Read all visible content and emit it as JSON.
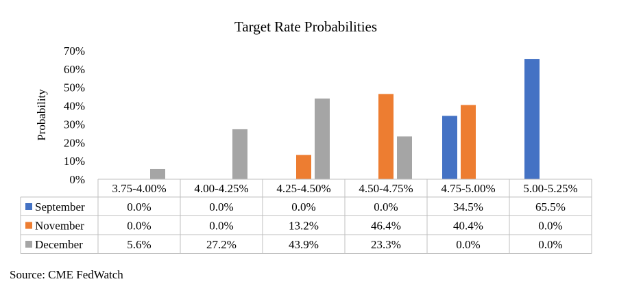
{
  "chart_data": {
    "type": "bar",
    "title": "Target Rate Probabilities",
    "ylabel": "Probability",
    "ylim": [
      0,
      70
    ],
    "yticks": [
      "0%",
      "10%",
      "20%",
      "30%",
      "40%",
      "50%",
      "60%",
      "70%"
    ],
    "categories": [
      "3.75-4.00%",
      "4.00-4.25%",
      "4.25-4.50%",
      "4.50-4.75%",
      "4.75-5.00%",
      "5.00-5.25%"
    ],
    "series": [
      {
        "name": "September",
        "color": "#4472C4",
        "values": [
          0.0,
          0.0,
          0.0,
          0.0,
          34.5,
          65.5
        ],
        "labels": [
          "0.0%",
          "0.0%",
          "0.0%",
          "0.0%",
          "34.5%",
          "65.5%"
        ]
      },
      {
        "name": "November",
        "color": "#ED7D31",
        "values": [
          0.0,
          0.0,
          13.2,
          46.4,
          40.4,
          0.0
        ],
        "labels": [
          "0.0%",
          "0.0%",
          "13.2%",
          "46.4%",
          "40.4%",
          "0.0%"
        ]
      },
      {
        "name": "December",
        "color": "#A5A5A5",
        "values": [
          5.6,
          27.2,
          43.9,
          23.3,
          0.0,
          0.0
        ],
        "labels": [
          "5.6%",
          "27.2%",
          "43.9%",
          "23.3%",
          "0.0%",
          "0.0%"
        ]
      }
    ],
    "grid": false,
    "legend": "data-table"
  },
  "source": "Source: CME FedWatch"
}
